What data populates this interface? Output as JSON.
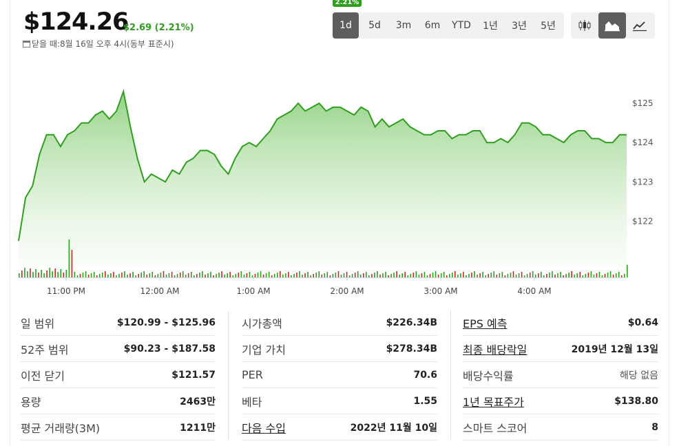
{
  "header": {
    "price": "$124.26",
    "change": "$2.69 (2.21%)",
    "close_note": "닫을 때:8월 16일 오후 4시(동부 표준시)",
    "tooltip_pct": "2.21%"
  },
  "range_tabs": [
    {
      "label": "1d",
      "active": true
    },
    {
      "label": "5d",
      "active": false
    },
    {
      "label": "3m",
      "active": false
    },
    {
      "label": "6m",
      "active": false
    },
    {
      "label": "YTD",
      "active": false
    },
    {
      "label": "1년",
      "active": false
    },
    {
      "label": "3년",
      "active": false
    },
    {
      "label": "5년",
      "active": false
    }
  ],
  "chart_types": [
    {
      "icon": "candlestick-icon",
      "active": false
    },
    {
      "icon": "area-chart-icon",
      "active": true
    },
    {
      "icon": "line-chart-icon",
      "active": false
    }
  ],
  "colors": {
    "up": "#2e9e1d",
    "down": "#c62828",
    "accent": "#5d5d5d"
  },
  "chart_data": {
    "type": "area",
    "y_ticks": [
      "$125",
      "$124",
      "$123",
      "$122"
    ],
    "y_tick_values": [
      125,
      124,
      123,
      122
    ],
    "x_ticks": [
      "11:00 PM",
      "12:00 AM",
      "1:00 AM",
      "2:00 AM",
      "3:00 AM",
      "4:00 AM"
    ],
    "ylim": [
      120.8,
      125.7
    ],
    "series": [
      {
        "values": [
          121.5,
          122.6,
          122.9,
          123.7,
          124.2,
          124.2,
          123.9,
          124.2,
          124.3,
          124.5,
          124.5,
          124.7,
          124.8,
          124.6,
          124.8,
          125.3,
          124.4,
          123.6,
          123.0,
          123.2,
          123.1,
          123.0,
          123.3,
          123.2,
          123.5,
          123.6,
          123.8,
          123.8,
          123.7,
          123.4,
          123.2,
          123.6,
          123.9,
          124.0,
          123.9,
          124.1,
          124.3,
          124.6,
          124.7,
          124.8,
          125.0,
          124.8,
          124.9,
          125.0,
          124.8,
          124.9,
          124.9,
          124.8,
          124.7,
          124.9,
          124.8,
          124.4,
          124.6,
          124.4,
          124.5,
          124.6,
          124.4,
          124.3,
          124.2,
          124.2,
          124.3,
          124.3,
          124.1,
          124.2,
          124.2,
          124.3,
          124.3,
          124.0,
          124.0,
          124.1,
          124.0,
          124.2,
          124.5,
          124.5,
          124.4,
          124.2,
          124.2,
          124.1,
          124.0,
          124.2,
          124.3,
          124.3,
          124.1,
          124.1,
          124.0,
          124.0,
          124.2,
          124.2
        ],
        "color": "#2e9e1d"
      }
    ]
  },
  "stats": {
    "col1": [
      {
        "label": "일 범위",
        "value": "$120.99 - $125.96",
        "link": false
      },
      {
        "label": "52주 범위",
        "value": "$90.23 - $187.58",
        "link": false
      },
      {
        "label": "이전 닫기",
        "value": "$121.57",
        "link": false
      },
      {
        "label": "용량",
        "value": "2463만",
        "link": false
      },
      {
        "label": "평균 거래량(3M)",
        "value": "1211만",
        "link": false
      }
    ],
    "col2": [
      {
        "label": "시가총액",
        "value": "$226.34B",
        "link": false
      },
      {
        "label": "기업 가치",
        "value": "$278.34B",
        "link": false
      },
      {
        "label": "PER",
        "value": "70.6",
        "link": false
      },
      {
        "label": "베타",
        "value": "1.55",
        "link": false
      },
      {
        "label": "다음 수입",
        "value": "2022년 11월 10일",
        "link": true
      }
    ],
    "col3": [
      {
        "label": "EPS 예측",
        "value": "$0.64",
        "link": true
      },
      {
        "label": "최종 배당락일",
        "value": "2019년 12월 13일",
        "link": true
      },
      {
        "label": "배당수익률",
        "value": "해당 없음",
        "link": false,
        "muted": true
      },
      {
        "label": "1년 목표주가",
        "value": "$138.80",
        "link": true
      },
      {
        "label": "스마트 스코어",
        "value": "8",
        "link": false
      }
    ]
  }
}
